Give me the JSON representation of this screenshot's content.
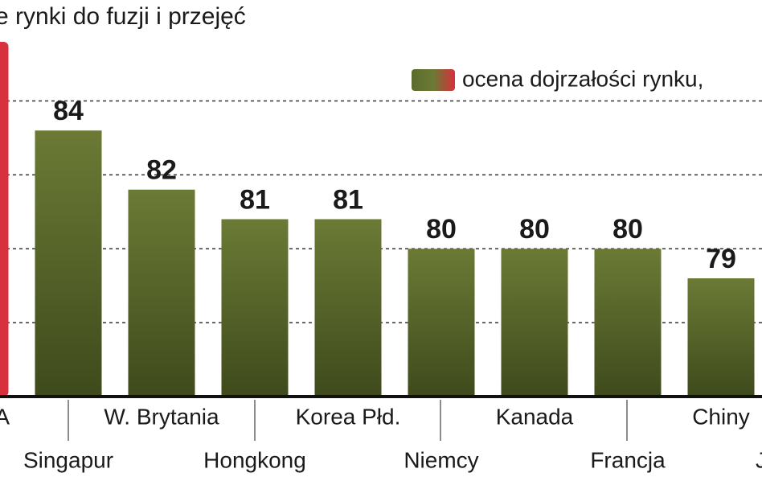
{
  "chart_data": {
    "type": "bar",
    "title": "e rynki do fuzji i przejęć",
    "categories": [
      "A",
      "Singapur",
      "W. Brytania",
      "Hongkong",
      "Korea Płd.",
      "Niemcy",
      "Kanada",
      "Francja",
      "Chiny",
      "J"
    ],
    "series": [
      {
        "name": "ocena dojrzałości rynku,",
        "color": "#5b6b2c",
        "colors": [
          "#d8303c",
          "#5b6b2c",
          "#5b6b2c",
          "#5b6b2c",
          "#5b6b2c",
          "#5b6b2c",
          "#5b6b2c",
          "#5b6b2c",
          "#5b6b2c",
          "#5b6b2c"
        ],
        "values": [
          87,
          84,
          82,
          81,
          81,
          80,
          80,
          80,
          79,
          null
        ]
      }
    ],
    "ylim": [
      75,
      87
    ],
    "yticks": [
      75,
      77.5,
      80,
      82.5,
      85
    ],
    "grid": true
  }
}
